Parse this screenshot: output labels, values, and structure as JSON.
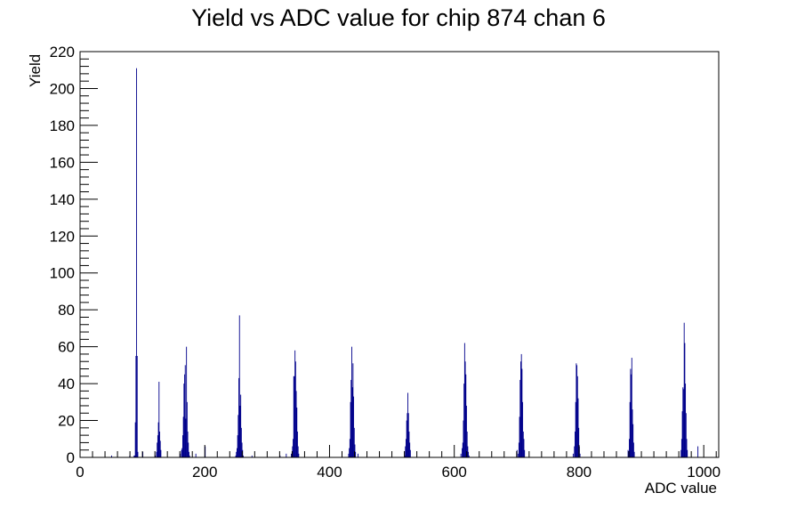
{
  "chart_data": {
    "type": "bar",
    "title": "Yield vs ADC value for chip 874 chan 6",
    "xlabel": "ADC value",
    "ylabel": "Yield",
    "xlim": [
      0,
      1024
    ],
    "ylim": [
      0,
      220
    ],
    "x_ticks": [
      0,
      200,
      400,
      600,
      800,
      1000
    ],
    "y_ticks": [
      0,
      20,
      40,
      60,
      80,
      100,
      120,
      140,
      160,
      180,
      200,
      220
    ],
    "grid": false,
    "legend": "none",
    "colors": {
      "histogram": "#00008b"
    },
    "series": [
      {
        "bins": [
          [
            50,
            1
          ],
          [
            79,
            1
          ],
          [
            86,
            1
          ],
          [
            87,
            1
          ],
          [
            88,
            19
          ],
          [
            89,
            55
          ],
          [
            90,
            211
          ],
          [
            91,
            55
          ],
          [
            92,
            3
          ],
          [
            100,
            3
          ],
          [
            120,
            1
          ],
          [
            122,
            3
          ],
          [
            123,
            8
          ],
          [
            124,
            12
          ],
          [
            125,
            19
          ],
          [
            126,
            41
          ],
          [
            127,
            14
          ],
          [
            128,
            9
          ],
          [
            129,
            4
          ],
          [
            160,
            2
          ],
          [
            162,
            4
          ],
          [
            163,
            5
          ],
          [
            164,
            12
          ],
          [
            165,
            22
          ],
          [
            166,
            40
          ],
          [
            167,
            45
          ],
          [
            168,
            50
          ],
          [
            169,
            21
          ],
          [
            170,
            60
          ],
          [
            171,
            30
          ],
          [
            172,
            14
          ],
          [
            173,
            8
          ],
          [
            174,
            3
          ],
          [
            175,
            1
          ],
          [
            185,
            2
          ],
          [
            200,
            6
          ],
          [
            249,
            1
          ],
          [
            250,
            3
          ],
          [
            251,
            5
          ],
          [
            252,
            12
          ],
          [
            253,
            23
          ],
          [
            254,
            43
          ],
          [
            255,
            77
          ],
          [
            256,
            28
          ],
          [
            257,
            34
          ],
          [
            258,
            16
          ],
          [
            259,
            8
          ],
          [
            260,
            4
          ],
          [
            261,
            1
          ],
          [
            275,
            1
          ],
          [
            320,
            1
          ],
          [
            330,
            2
          ],
          [
            338,
            2
          ],
          [
            340,
            6
          ],
          [
            341,
            10
          ],
          [
            342,
            44
          ],
          [
            343,
            44
          ],
          [
            344,
            58
          ],
          [
            345,
            52
          ],
          [
            346,
            36
          ],
          [
            347,
            27
          ],
          [
            348,
            14
          ],
          [
            349,
            6
          ],
          [
            350,
            2
          ],
          [
            430,
            2
          ],
          [
            431,
            5
          ],
          [
            432,
            10
          ],
          [
            433,
            30
          ],
          [
            434,
            42
          ],
          [
            435,
            60
          ],
          [
            436,
            38
          ],
          [
            437,
            51
          ],
          [
            438,
            33
          ],
          [
            439,
            16
          ],
          [
            440,
            7
          ],
          [
            441,
            3
          ],
          [
            445,
            2
          ],
          [
            520,
            1
          ],
          [
            521,
            6
          ],
          [
            522,
            10
          ],
          [
            523,
            20
          ],
          [
            524,
            24
          ],
          [
            525,
            35
          ],
          [
            526,
            24
          ],
          [
            527,
            14
          ],
          [
            528,
            8
          ],
          [
            529,
            4
          ],
          [
            610,
            2
          ],
          [
            612,
            5
          ],
          [
            613,
            8
          ],
          [
            614,
            20
          ],
          [
            615,
            40
          ],
          [
            616,
            62
          ],
          [
            617,
            52
          ],
          [
            618,
            45
          ],
          [
            619,
            28
          ],
          [
            620,
            14
          ],
          [
            621,
            6
          ],
          [
            622,
            3
          ],
          [
            623,
            1
          ],
          [
            700,
            4
          ],
          [
            702,
            2
          ],
          [
            703,
            8
          ],
          [
            704,
            22
          ],
          [
            705,
            42
          ],
          [
            706,
            52
          ],
          [
            707,
            56
          ],
          [
            708,
            48
          ],
          [
            709,
            30
          ],
          [
            710,
            14
          ],
          [
            711,
            10
          ],
          [
            712,
            4
          ],
          [
            790,
            2
          ],
          [
            792,
            6
          ],
          [
            793,
            14
          ],
          [
            794,
            30
          ],
          [
            795,
            51
          ],
          [
            796,
            50
          ],
          [
            797,
            44
          ],
          [
            798,
            32
          ],
          [
            799,
            16
          ],
          [
            800,
            6
          ],
          [
            801,
            2
          ],
          [
            878,
            4
          ],
          [
            880,
            10
          ],
          [
            881,
            30
          ],
          [
            882,
            48
          ],
          [
            883,
            45
          ],
          [
            884,
            54
          ],
          [
            885,
            26
          ],
          [
            886,
            18
          ],
          [
            887,
            8
          ],
          [
            888,
            3
          ],
          [
            963,
            4
          ],
          [
            964,
            10
          ],
          [
            965,
            25
          ],
          [
            966,
            38
          ],
          [
            967,
            37
          ],
          [
            968,
            73
          ],
          [
            969,
            62
          ],
          [
            970,
            40
          ],
          [
            971,
            24
          ],
          [
            972,
            10
          ],
          [
            973,
            4
          ],
          [
            990,
            6
          ]
        ]
      }
    ]
  }
}
